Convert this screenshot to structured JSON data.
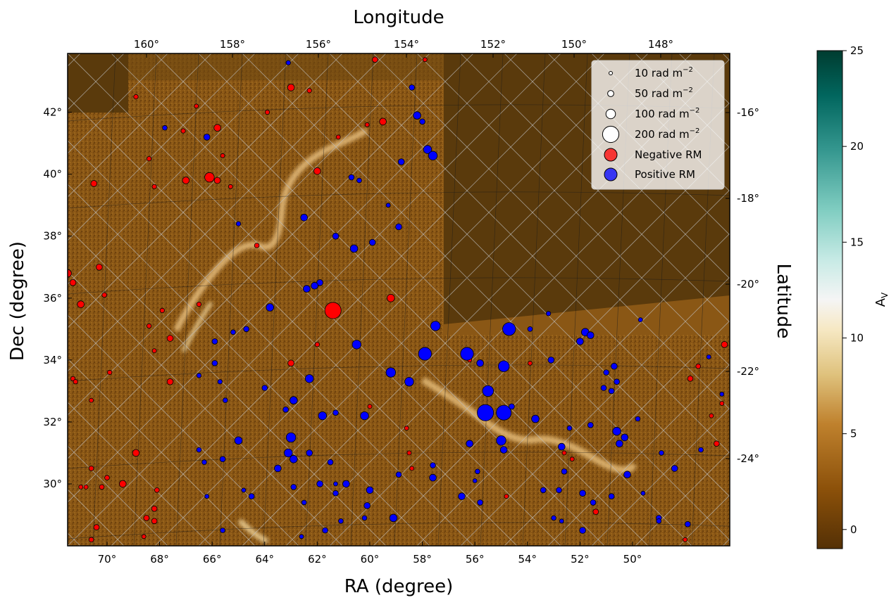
{
  "chart_data": {
    "type": "scatter",
    "title": "",
    "xlabel": "RA (degree)",
    "ylabel": "Dec (degree)",
    "top_label": "Longitude",
    "right_label": "Latitude",
    "xlim": [
      71.5,
      46.3
    ],
    "ylim": [
      28.0,
      43.9
    ],
    "x_ticks": [
      70,
      68,
      66,
      64,
      62,
      60,
      58,
      56,
      54,
      52,
      50
    ],
    "x_tick_labels": [
      "70°",
      "68°",
      "66°",
      "64°",
      "62°",
      "60°",
      "58°",
      "56°",
      "54°",
      "52°",
      "50°"
    ],
    "y_ticks": [
      30,
      32,
      34,
      36,
      38,
      40,
      42
    ],
    "y_tick_labels": [
      "30°",
      "32°",
      "34°",
      "36°",
      "38°",
      "40°",
      "42°"
    ],
    "lon_tick_labels": [
      "160°",
      "158°",
      "156°",
      "154°",
      "152°",
      "150°",
      "148°"
    ],
    "lat_tick_labels": [
      "-16°",
      "-18°",
      "-20°",
      "-22°",
      "-24°"
    ],
    "colorbar": {
      "label": "A",
      "label_sub": "V",
      "range": [
        -1,
        25
      ],
      "ticks": [
        0,
        5,
        10,
        15,
        20,
        25
      ],
      "tick_labels": [
        "0",
        "5",
        "10",
        "15",
        "20",
        "25"
      ],
      "colormap": "BrBG"
    },
    "legend": {
      "placement": "top-right",
      "size_entries": [
        {
          "label": "10 rad m",
          "sup": "−2",
          "rm": 10
        },
        {
          "label": "50 rad m",
          "sup": "−2",
          "rm": 50
        },
        {
          "label": "100 rad m",
          "sup": "−2",
          "rm": 100
        },
        {
          "label": "200 rad m",
          "sup": "−2",
          "rm": 200
        }
      ],
      "color_entries": [
        {
          "label": "Negative RM",
          "color": "#ff0000"
        },
        {
          "label": "Positive RM",
          "color": "#0000ff"
        }
      ]
    },
    "grid": true,
    "colors": {
      "negative": "#ff0000",
      "positive": "#0000ff"
    },
    "series": [
      {
        "name": "Negative RM",
        "points": [
          [
            59.8,
            43.7,
            40
          ],
          [
            63.0,
            42.8,
            60
          ],
          [
            62.3,
            42.7,
            25
          ],
          [
            68.9,
            42.5,
            25
          ],
          [
            66.6,
            42.2,
            20
          ],
          [
            63.9,
            42.0,
            25
          ],
          [
            59.5,
            41.7,
            60
          ],
          [
            65.8,
            41.5,
            60
          ],
          [
            67.1,
            41.4,
            25
          ],
          [
            61.2,
            41.2,
            20
          ],
          [
            60.1,
            41.6,
            20
          ],
          [
            65.6,
            40.6,
            20
          ],
          [
            68.4,
            40.5,
            25
          ],
          [
            62.0,
            40.1,
            60
          ],
          [
            66.1,
            39.9,
            100
          ],
          [
            67.0,
            39.8,
            60
          ],
          [
            65.8,
            39.8,
            50
          ],
          [
            70.5,
            39.7,
            50
          ],
          [
            68.2,
            39.6,
            25
          ],
          [
            65.3,
            39.6,
            20
          ],
          [
            64.3,
            37.7,
            30
          ],
          [
            70.3,
            37.0,
            50
          ],
          [
            71.5,
            36.8,
            70
          ],
          [
            71.3,
            36.5,
            50
          ],
          [
            70.1,
            36.1,
            30
          ],
          [
            71.0,
            35.8,
            60
          ],
          [
            66.5,
            35.8,
            25
          ],
          [
            67.9,
            35.6,
            25
          ],
          [
            68.4,
            35.1,
            25
          ],
          [
            67.6,
            34.7,
            50
          ],
          [
            68.2,
            34.3,
            20
          ],
          [
            61.4,
            35.6,
            200
          ],
          [
            59.2,
            36.0,
            70
          ],
          [
            62.0,
            34.5,
            25
          ],
          [
            63.0,
            33.9,
            50
          ],
          [
            69.9,
            33.6,
            25
          ],
          [
            71.3,
            33.4,
            25
          ],
          [
            71.2,
            33.3,
            25
          ],
          [
            67.6,
            33.3,
            50
          ],
          [
            70.6,
            32.7,
            20
          ],
          [
            68.9,
            31.0,
            60
          ],
          [
            70.6,
            30.5,
            30
          ],
          [
            70.0,
            30.2,
            30
          ],
          [
            69.4,
            30.0,
            60
          ],
          [
            70.2,
            29.9,
            30
          ],
          [
            68.1,
            29.8,
            30
          ],
          [
            71.0,
            29.9,
            20
          ],
          [
            70.8,
            29.9,
            20
          ],
          [
            68.2,
            29.2,
            40
          ],
          [
            68.5,
            28.9,
            40
          ],
          [
            68.2,
            28.8,
            40
          ],
          [
            70.4,
            28.6,
            40
          ],
          [
            70.6,
            28.2,
            30
          ],
          [
            68.6,
            28.3,
            20
          ],
          [
            58.4,
            30.5,
            20
          ],
          [
            58.5,
            31.0,
            20
          ],
          [
            58.6,
            31.8,
            20
          ],
          [
            60.0,
            32.5,
            20
          ],
          [
            56.2,
            34.0,
            20
          ],
          [
            53.9,
            33.9,
            20
          ],
          [
            52.6,
            31.0,
            20
          ],
          [
            52.3,
            30.8,
            20
          ],
          [
            54.8,
            29.6,
            20
          ],
          [
            51.4,
            29.1,
            40
          ],
          [
            46.5,
            34.5,
            50
          ],
          [
            47.5,
            33.8,
            30
          ],
          [
            47.8,
            33.4,
            40
          ],
          [
            46.6,
            32.6,
            20
          ],
          [
            47.0,
            32.2,
            20
          ],
          [
            46.8,
            31.3,
            40
          ],
          [
            48.0,
            28.2,
            20
          ],
          [
            57.9,
            43.7,
            20
          ]
        ]
      },
      {
        "name": "Positive RM",
        "points": [
          [
            58.4,
            42.8,
            40
          ],
          [
            58.2,
            41.9,
            70
          ],
          [
            58.0,
            41.7,
            40
          ],
          [
            57.8,
            40.8,
            80
          ],
          [
            57.6,
            40.6,
            90
          ],
          [
            58.8,
            40.4,
            50
          ],
          [
            60.7,
            39.9,
            40
          ],
          [
            60.4,
            39.8,
            30
          ],
          [
            59.3,
            39.0,
            20
          ],
          [
            62.5,
            38.6,
            60
          ],
          [
            65.0,
            38.4,
            25
          ],
          [
            58.9,
            38.3,
            50
          ],
          [
            61.3,
            38.0,
            50
          ],
          [
            59.9,
            37.8,
            50
          ],
          [
            60.6,
            37.6,
            70
          ],
          [
            61.9,
            36.5,
            50
          ],
          [
            62.1,
            36.4,
            60
          ],
          [
            62.4,
            36.3,
            60
          ],
          [
            63.8,
            35.7,
            70
          ],
          [
            57.5,
            35.1,
            100
          ],
          [
            54.7,
            35.0,
            150
          ],
          [
            53.9,
            35.0,
            30
          ],
          [
            51.8,
            34.9,
            70
          ],
          [
            51.6,
            34.8,
            60
          ],
          [
            52.0,
            34.6,
            60
          ],
          [
            64.7,
            35.0,
            40
          ],
          [
            65.2,
            34.9,
            30
          ],
          [
            65.9,
            34.6,
            40
          ],
          [
            60.5,
            34.5,
            90
          ],
          [
            57.9,
            34.2,
            150
          ],
          [
            56.3,
            34.2,
            150
          ],
          [
            55.8,
            33.9,
            60
          ],
          [
            54.9,
            33.8,
            120
          ],
          [
            53.1,
            34.0,
            50
          ],
          [
            59.2,
            33.6,
            100
          ],
          [
            58.5,
            33.3,
            90
          ],
          [
            62.3,
            33.4,
            80
          ],
          [
            55.5,
            33.0,
            120
          ],
          [
            64.0,
            33.1,
            40
          ],
          [
            65.7,
            33.3,
            25
          ],
          [
            65.5,
            32.7,
            30
          ],
          [
            62.9,
            32.7,
            70
          ],
          [
            61.8,
            32.2,
            80
          ],
          [
            61.3,
            32.3,
            40
          ],
          [
            60.2,
            32.2,
            80
          ],
          [
            63.2,
            32.4,
            40
          ],
          [
            55.6,
            32.3,
            200
          ],
          [
            54.9,
            32.3,
            180
          ],
          [
            54.6,
            32.5,
            40
          ],
          [
            53.7,
            32.1,
            70
          ],
          [
            52.4,
            31.8,
            30
          ],
          [
            51.6,
            31.9,
            40
          ],
          [
            50.6,
            31.7,
            80
          ],
          [
            50.3,
            31.5,
            60
          ],
          [
            50.5,
            31.3,
            60
          ],
          [
            49.8,
            32.1,
            30
          ],
          [
            55.0,
            31.4,
            100
          ],
          [
            54.9,
            31.1,
            60
          ],
          [
            52.7,
            31.2,
            60
          ],
          [
            56.2,
            31.3,
            60
          ],
          [
            63.0,
            31.5,
            100
          ],
          [
            63.1,
            31.0,
            80
          ],
          [
            62.9,
            30.8,
            70
          ],
          [
            62.3,
            31.0,
            50
          ],
          [
            61.5,
            30.7,
            40
          ],
          [
            65.0,
            31.4,
            70
          ],
          [
            66.3,
            30.7,
            30
          ],
          [
            65.6,
            30.8,
            40
          ],
          [
            63.5,
            30.5,
            60
          ],
          [
            58.9,
            30.3,
            40
          ],
          [
            57.6,
            30.2,
            60
          ],
          [
            55.9,
            30.4,
            30
          ],
          [
            52.6,
            30.4,
            40
          ],
          [
            50.2,
            30.3,
            60
          ],
          [
            48.4,
            30.5,
            50
          ],
          [
            61.9,
            30.0,
            50
          ],
          [
            61.3,
            30.0,
            20
          ],
          [
            60.9,
            30.0,
            60
          ],
          [
            60.0,
            29.8,
            60
          ],
          [
            62.9,
            29.9,
            40
          ],
          [
            64.8,
            29.8,
            20
          ],
          [
            64.5,
            29.6,
            40
          ],
          [
            66.2,
            29.6,
            20
          ],
          [
            61.3,
            29.7,
            40
          ],
          [
            56.5,
            29.6,
            60
          ],
          [
            55.8,
            29.4,
            40
          ],
          [
            53.4,
            29.8,
            40
          ],
          [
            52.8,
            29.8,
            40
          ],
          [
            51.9,
            29.7,
            50
          ],
          [
            51.5,
            29.4,
            40
          ],
          [
            49.6,
            29.7,
            20
          ],
          [
            50.8,
            29.6,
            40
          ],
          [
            60.1,
            29.3,
            50
          ],
          [
            62.5,
            29.4,
            30
          ],
          [
            59.1,
            28.9,
            70
          ],
          [
            61.1,
            28.8,
            30
          ],
          [
            60.2,
            28.9,
            30
          ],
          [
            53.0,
            28.9,
            30
          ],
          [
            52.7,
            28.8,
            20
          ],
          [
            49.0,
            28.9,
            40
          ],
          [
            49.0,
            28.8,
            30
          ],
          [
            47.9,
            28.7,
            40
          ],
          [
            51.9,
            28.5,
            50
          ],
          [
            62.6,
            28.3,
            20
          ],
          [
            65.6,
            28.5,
            30
          ],
          [
            61.7,
            28.5,
            40
          ],
          [
            66.2,
            41.2,
            50
          ],
          [
            67.8,
            41.5,
            30
          ],
          [
            63.1,
            43.6,
            25
          ],
          [
            57.6,
            30.6,
            40
          ],
          [
            48.9,
            31.0,
            30
          ],
          [
            47.4,
            31.1,
            30
          ],
          [
            46.6,
            32.9,
            20
          ],
          [
            50.7,
            33.8,
            50
          ],
          [
            51.0,
            33.6,
            40
          ],
          [
            50.6,
            33.3,
            40
          ],
          [
            51.1,
            33.1,
            40
          ],
          [
            50.8,
            33.0,
            40
          ],
          [
            53.2,
            35.5,
            25
          ],
          [
            49.7,
            35.3,
            20
          ],
          [
            47.1,
            34.1,
            20
          ],
          [
            65.9,
            33.9,
            40
          ],
          [
            66.5,
            33.5,
            25
          ],
          [
            66.5,
            31.1,
            30
          ],
          [
            56.0,
            30.1,
            20
          ]
        ]
      }
    ]
  }
}
